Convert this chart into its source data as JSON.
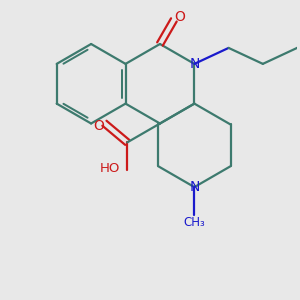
{
  "background_color": "#e8e8e8",
  "bond_color": "#3d7a6e",
  "nitrogen_color": "#1a1acc",
  "oxygen_color": "#cc1a1a",
  "figsize": [
    3.0,
    3.0
  ],
  "dpi": 100,
  "xlim": [
    0.0,
    1.0
  ],
  "ylim": [
    0.0,
    1.0
  ]
}
